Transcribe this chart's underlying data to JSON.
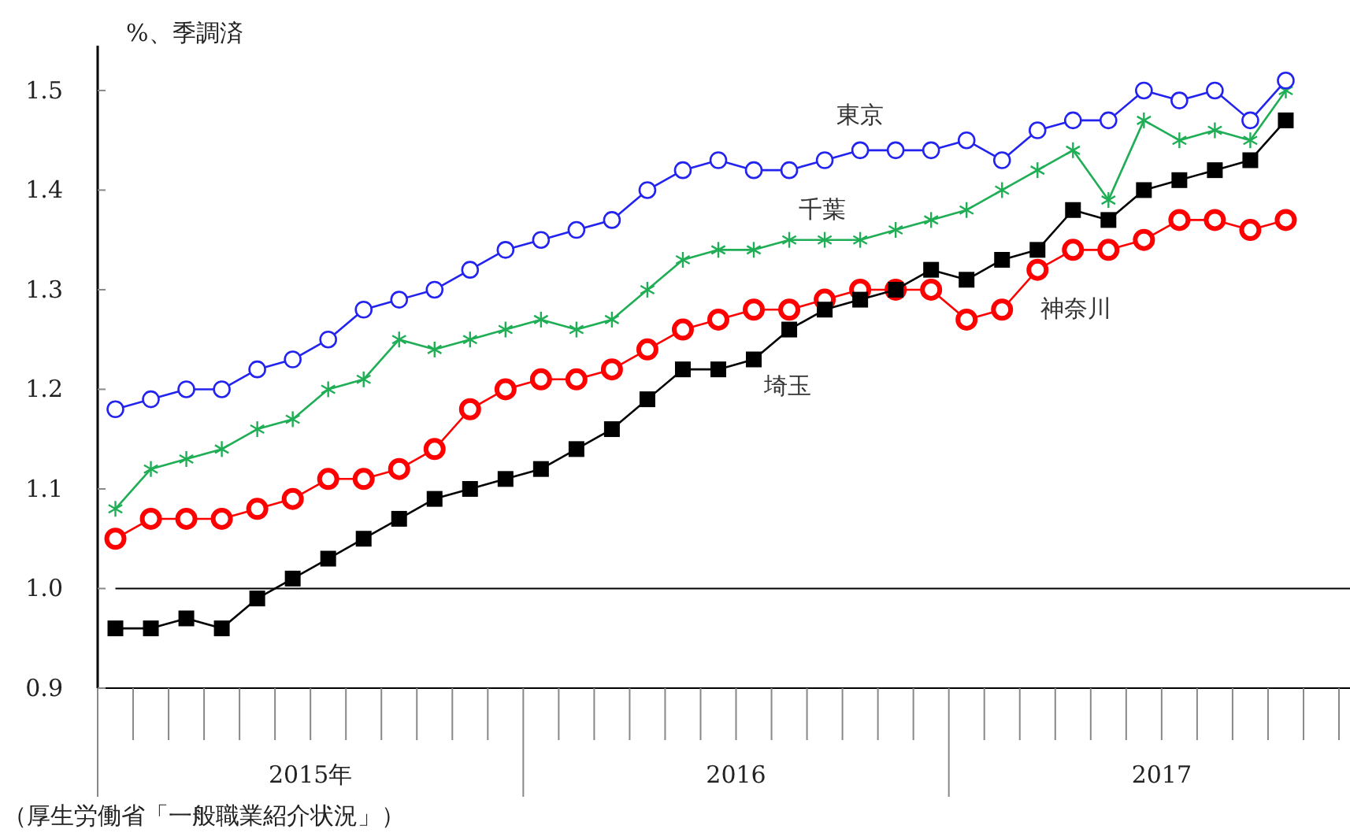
{
  "chart_data": {
    "type": "line",
    "ylabel": "%、季調済",
    "categories": [
      null,
      null,
      null,
      null,
      null,
      null,
      null,
      null,
      null,
      null,
      null,
      null,
      null,
      null,
      null,
      null,
      null,
      null,
      null,
      null,
      null,
      null,
      null,
      null,
      null,
      null,
      null,
      null,
      null,
      null,
      null,
      null,
      null,
      null,
      null
    ],
    "ylim": [
      0.9,
      1.545
    ],
    "yticks": [
      {
        "value": 0.9,
        "label": "0.9"
      },
      {
        "value": 1.0,
        "label": "1.0"
      },
      {
        "value": 1.1,
        "label": "1.1"
      },
      {
        "value": 1.2,
        "label": "1.2"
      },
      {
        "value": 1.3,
        "label": "1.3"
      },
      {
        "value": 1.4,
        "label": "1.4"
      },
      {
        "value": 1.5,
        "label": "1.5"
      }
    ],
    "grid": false,
    "legend": false,
    "line_style": "solid",
    "ref_lines": [
      {
        "axis": "y",
        "value": 1.0,
        "color": "#000000"
      }
    ],
    "series": [
      {
        "name": "東京",
        "color": "#2323f0",
        "marker": "circle",
        "values": [
          1.18,
          1.19,
          1.2,
          1.2,
          1.22,
          1.23,
          1.25,
          1.28,
          1.29,
          1.3,
          1.32,
          1.34,
          1.35,
          1.36,
          1.37,
          1.4,
          1.42,
          1.43,
          1.42,
          1.42,
          1.43,
          1.44,
          1.44,
          1.44,
          1.45,
          1.43,
          1.46,
          1.47,
          1.47,
          1.5,
          1.49,
          1.5,
          1.47,
          1.51,
          null
        ]
      },
      {
        "name": "千葉",
        "color": "#1fae55",
        "marker": "cross",
        "values": [
          1.08,
          1.12,
          1.13,
          1.14,
          1.16,
          1.17,
          1.2,
          1.21,
          1.25,
          1.24,
          1.25,
          1.26,
          1.27,
          1.26,
          1.27,
          1.3,
          1.33,
          1.34,
          1.34,
          1.35,
          1.35,
          1.35,
          1.36,
          1.37,
          1.38,
          1.4,
          1.42,
          1.44,
          1.39,
          1.47,
          1.45,
          1.46,
          1.45,
          1.5,
          null
        ]
      },
      {
        "name": "神奈川",
        "color": "#ff0000",
        "marker": "circle",
        "values": [
          1.05,
          1.07,
          1.07,
          1.07,
          1.08,
          1.09,
          1.11,
          1.11,
          1.12,
          1.14,
          1.18,
          1.2,
          1.21,
          1.21,
          1.22,
          1.24,
          1.26,
          1.27,
          1.28,
          1.28,
          1.29,
          1.3,
          1.3,
          1.3,
          1.27,
          1.28,
          1.32,
          1.34,
          1.34,
          1.35,
          1.37,
          1.37,
          1.36,
          1.37,
          null
        ]
      },
      {
        "name": "埼玉",
        "color": "#000000",
        "marker": "square",
        "values": [
          0.96,
          0.96,
          0.97,
          0.96,
          0.99,
          1.01,
          1.03,
          1.05,
          1.07,
          1.09,
          1.1,
          1.11,
          1.12,
          1.14,
          1.16,
          1.19,
          1.22,
          1.22,
          1.23,
          1.26,
          1.28,
          1.29,
          1.3,
          1.32,
          1.31,
          1.33,
          1.34,
          1.38,
          1.37,
          1.4,
          1.41,
          1.42,
          1.43,
          1.47,
          null
        ]
      }
    ],
    "annotations": [
      "2015年",
      "2016",
      "2017",
      "（厚生労働省「一般職業紹介状況」）"
    ]
  }
}
